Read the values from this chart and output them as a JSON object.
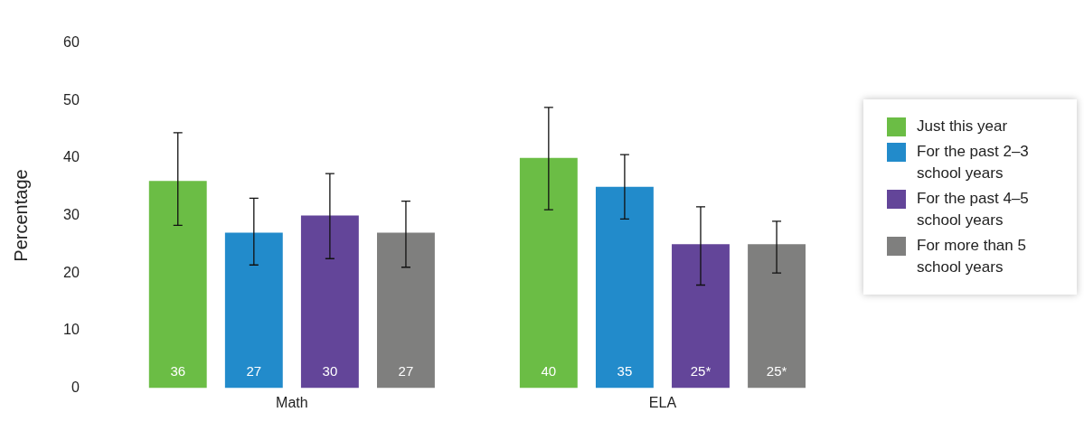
{
  "chart_data": {
    "type": "bar",
    "ylabel": "Percentage",
    "categories": [
      "Math",
      "ELA"
    ],
    "series": [
      {
        "name": "Just this year",
        "color": "#6bbd45",
        "values": [
          36,
          40
        ],
        "errors": [
          [
            28.3,
            44.4
          ],
          [
            31.0,
            48.8
          ]
        ],
        "value_labels": [
          "36",
          "40"
        ]
      },
      {
        "name": "For the past 2–3 school years",
        "color": "#228bcb",
        "values": [
          27,
          35
        ],
        "errors": [
          [
            21.4,
            33.0
          ],
          [
            29.4,
            40.6
          ]
        ],
        "value_labels": [
          "27",
          "35"
        ]
      },
      {
        "name": "For the past 4–5 school years",
        "color": "#634599",
        "values": [
          30,
          25
        ],
        "errors": [
          [
            22.5,
            37.3
          ],
          [
            17.9,
            31.5
          ]
        ],
        "value_labels": [
          "30",
          "25*"
        ]
      },
      {
        "name": "For more than 5 school years",
        "color": "#7f7f7e",
        "values": [
          27,
          25
        ],
        "errors": [
          [
            21.0,
            32.5
          ],
          [
            20.0,
            29.0
          ]
        ],
        "value_labels": [
          "27",
          "25*"
        ]
      }
    ],
    "ylim": [
      0,
      60
    ],
    "yticks": [
      0,
      10,
      20,
      30,
      40,
      50,
      60
    ],
    "grid": false,
    "legend": "right"
  }
}
